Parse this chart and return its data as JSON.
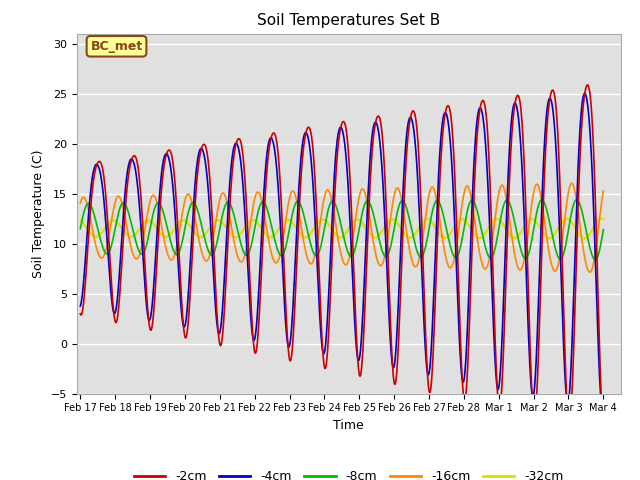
{
  "title": "Soil Temperatures Set B",
  "xlabel": "Time",
  "ylabel": "Soil Temperature (C)",
  "ylim": [
    -5,
    31
  ],
  "xlim": [
    -0.1,
    15.5
  ],
  "bg_color": "#e0e0e0",
  "fig_color": "#ffffff",
  "grid_color": "#ffffff",
  "annotation_text": "BC_met",
  "annotation_bg": "#ffff99",
  "annotation_border": "#8B4513",
  "series": {
    "-2cm": {
      "color": "#cc0000",
      "lw": 1.2
    },
    "-4cm": {
      "color": "#0000cc",
      "lw": 1.2
    },
    "-8cm": {
      "color": "#00bb00",
      "lw": 1.2
    },
    "-16cm": {
      "color": "#ff8800",
      "lw": 1.2
    },
    "-32cm": {
      "color": "#dddd00",
      "lw": 1.5
    }
  },
  "xtick_labels": [
    "Feb 17",
    "Feb 18",
    "Feb 19",
    "Feb 20",
    "Feb 21",
    "Feb 22",
    "Feb 23",
    "Feb 24",
    "Feb 25",
    "Feb 26",
    "Feb 27",
    "Feb 28",
    "Mar 1",
    "Mar 2",
    "Mar 3",
    "Mar 4"
  ],
  "legend_labels": [
    "-2cm",
    "-4cm",
    "-8cm",
    "-16cm",
    "-32cm"
  ],
  "legend_colors": [
    "#cc0000",
    "#0000cc",
    "#00bb00",
    "#ff8800",
    "#dddd00"
  ]
}
